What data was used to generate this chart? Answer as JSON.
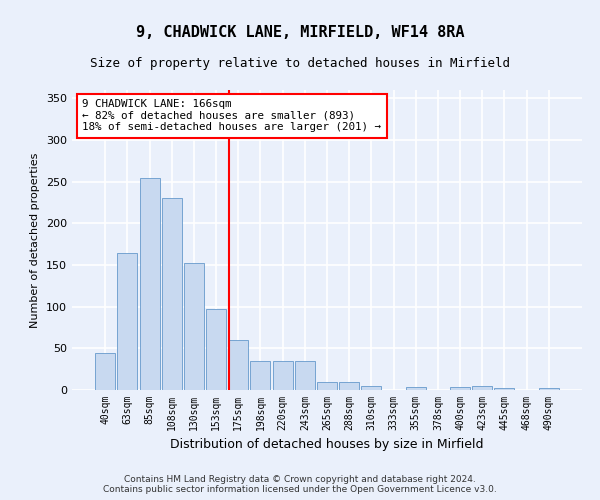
{
  "title": "9, CHADWICK LANE, MIRFIELD, WF14 8RA",
  "subtitle": "Size of property relative to detached houses in Mirfield",
  "xlabel": "Distribution of detached houses by size in Mirfield",
  "ylabel": "Number of detached properties",
  "bar_labels": [
    "40sqm",
    "63sqm",
    "85sqm",
    "108sqm",
    "130sqm",
    "153sqm",
    "175sqm",
    "198sqm",
    "220sqm",
    "243sqm",
    "265sqm",
    "288sqm",
    "310sqm",
    "333sqm",
    "355sqm",
    "378sqm",
    "400sqm",
    "423sqm",
    "445sqm",
    "468sqm",
    "490sqm"
  ],
  "bar_values": [
    45,
    165,
    255,
    230,
    152,
    97,
    60,
    35,
    35,
    35,
    10,
    10,
    5,
    0,
    4,
    0,
    4,
    5,
    2,
    0,
    2
  ],
  "bar_color": "#c8d9f0",
  "bar_edge_color": "#6699cc",
  "reference_line_color": "red",
  "annotation_text": "9 CHADWICK LANE: 166sqm\n← 82% of detached houses are smaller (893)\n18% of semi-detached houses are larger (201) →",
  "annotation_box_facecolor": "white",
  "annotation_box_edgecolor": "red",
  "ylim": [
    0,
    360
  ],
  "yticks": [
    0,
    50,
    100,
    150,
    200,
    250,
    300,
    350
  ],
  "footer_line1": "Contains HM Land Registry data © Crown copyright and database right 2024.",
  "footer_line2": "Contains public sector information licensed under the Open Government Licence v3.0.",
  "bg_color": "#eaf0fb",
  "plot_bg_color": "#eaf0fb",
  "grid_color": "#ffffff",
  "title_fontsize": 11,
  "subtitle_fontsize": 9,
  "tick_fontsize": 7,
  "ylabel_fontsize": 8,
  "xlabel_fontsize": 9,
  "footer_fontsize": 6.5
}
